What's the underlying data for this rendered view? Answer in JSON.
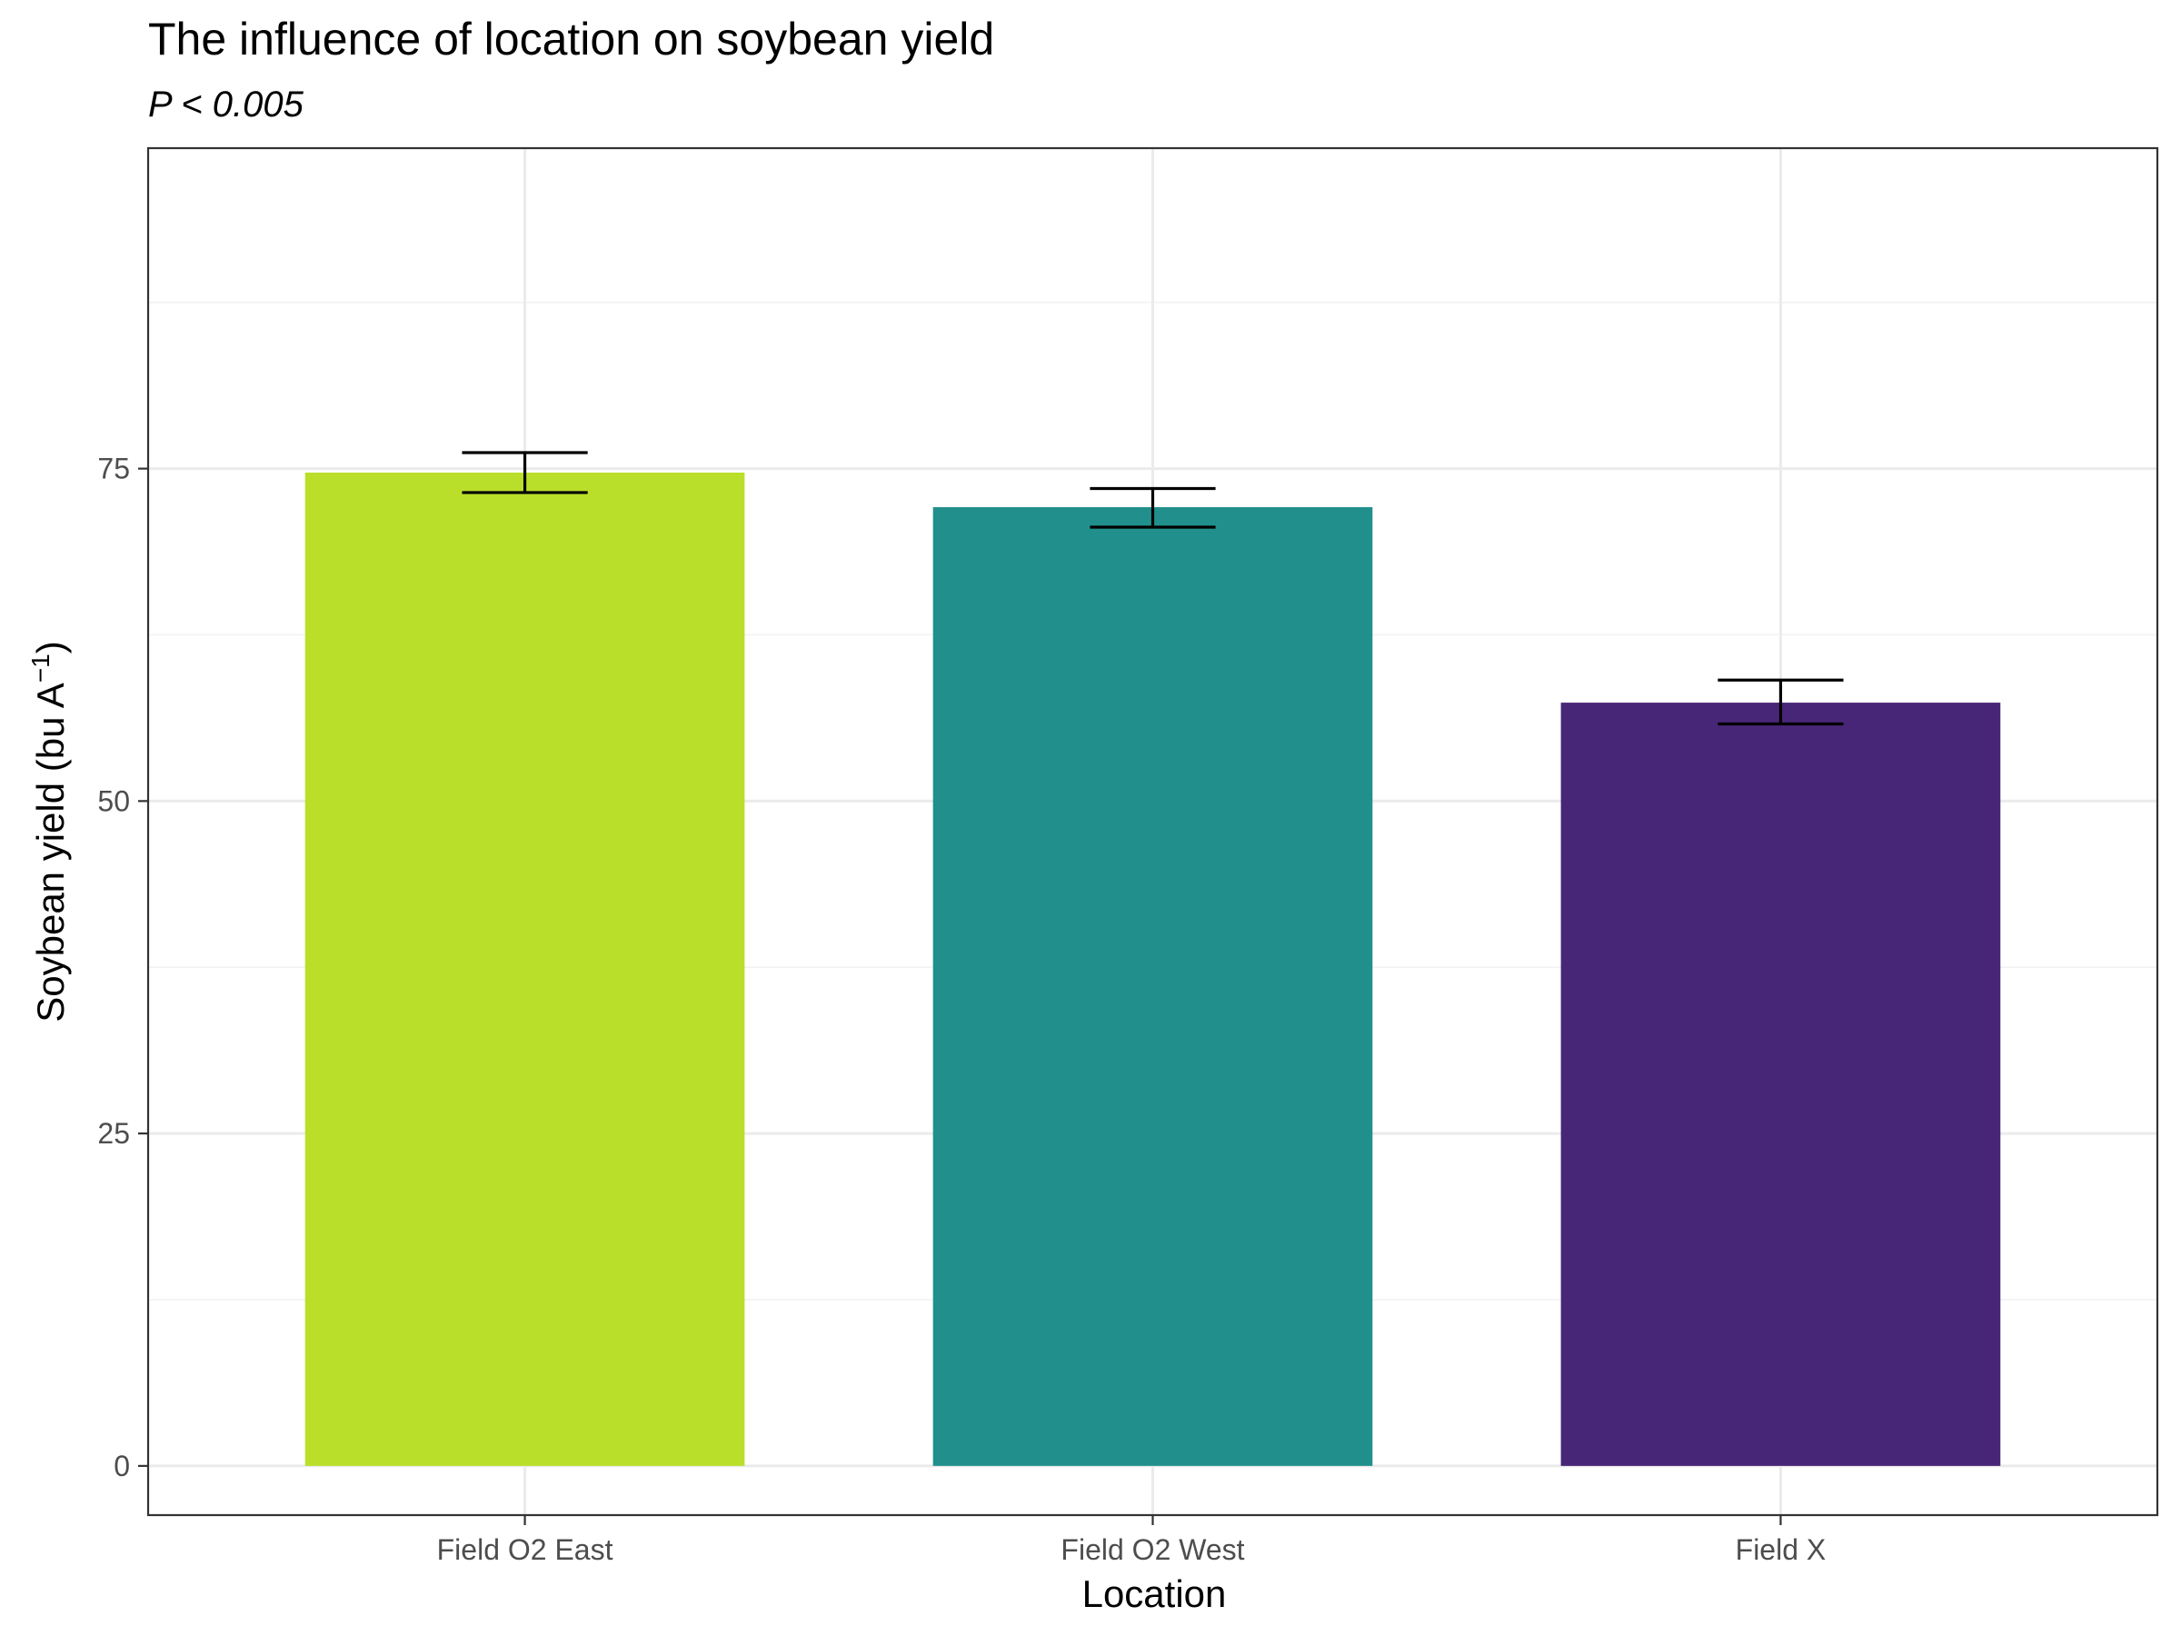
{
  "chart_data": {
    "type": "bar",
    "title": "The influence of location on soybean yield",
    "subtitle": "P < 0.005",
    "xlabel": "Location",
    "ylabel_main": "Soybean yield (bu A",
    "ylabel_sup": "−1",
    "ylabel_close": ")",
    "categories": [
      "Field O2 East",
      "Field O2 West",
      "Field X"
    ],
    "values": [
      74.7,
      72.1,
      57.4
    ],
    "error_low": [
      73.2,
      70.6,
      55.8
    ],
    "error_high": [
      76.2,
      73.5,
      59.1
    ],
    "colors": [
      "#BADF2A",
      "#21908C",
      "#482677"
    ],
    "ylim": [
      -3.7,
      99.1
    ],
    "yticks": [
      0,
      25,
      50,
      75
    ],
    "ytick_labels": [
      "0",
      "25",
      "50",
      "75"
    ],
    "minor_yticks": [
      12.5,
      37.5,
      62.5,
      87.5
    ],
    "grid": true,
    "legend": "none"
  }
}
